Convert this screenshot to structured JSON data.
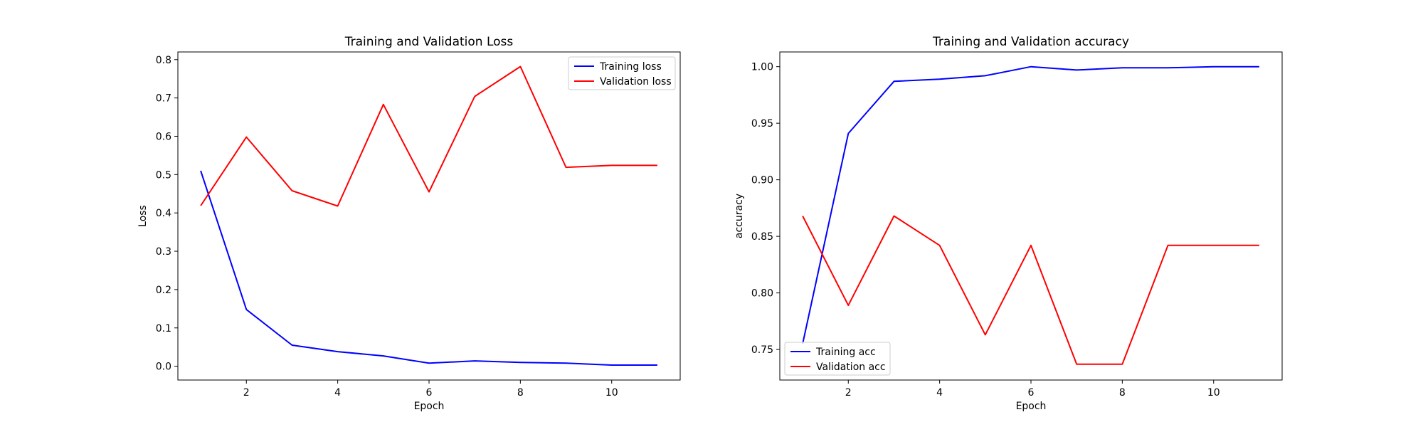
{
  "chart_data": [
    {
      "type": "line",
      "title": "Training and Validation Loss",
      "xlabel": "Epoch",
      "ylabel": "Loss",
      "xlim": [
        0.5,
        11.5
      ],
      "ylim": [
        -0.036,
        0.82
      ],
      "xticks": [
        2,
        4,
        6,
        8,
        10
      ],
      "yticks": [
        0.0,
        0.1,
        0.2,
        0.3,
        0.4,
        0.5,
        0.6,
        0.7,
        0.8
      ],
      "ytick_format": 1,
      "grid": false,
      "legend": "upper right",
      "x": [
        1,
        2,
        3,
        4,
        5,
        6,
        7,
        8,
        9,
        10,
        11
      ],
      "series": [
        {
          "name": "Training loss",
          "color": "#0000ff",
          "values": [
            0.51,
            0.148,
            0.055,
            0.038,
            0.027,
            0.008,
            0.014,
            0.01,
            0.008,
            0.003,
            0.003
          ]
        },
        {
          "name": "Validation loss",
          "color": "#ff0000",
          "values": [
            0.419,
            0.598,
            0.458,
            0.418,
            0.683,
            0.455,
            0.704,
            0.782,
            0.519,
            0.524,
            0.524
          ]
        }
      ]
    },
    {
      "type": "line",
      "title": "Training and Validation accuracy",
      "xlabel": "Epoch",
      "ylabel": "accuracy",
      "xlim": [
        0.5,
        11.5
      ],
      "ylim": [
        0.723,
        1.013
      ],
      "xticks": [
        2,
        4,
        6,
        8,
        10
      ],
      "yticks": [
        0.75,
        0.8,
        0.85,
        0.9,
        0.95,
        1.0
      ],
      "ytick_format": 2,
      "grid": false,
      "legend": "lower left",
      "x": [
        1,
        2,
        3,
        4,
        5,
        6,
        7,
        8,
        9,
        10,
        11
      ],
      "series": [
        {
          "name": "Training acc",
          "color": "#0000ff",
          "values": [
            0.755,
            0.941,
            0.987,
            0.989,
            0.992,
            1.0,
            0.997,
            0.999,
            0.999,
            1.0,
            1.0
          ]
        },
        {
          "name": "Validation acc",
          "color": "#ff0000",
          "values": [
            0.868,
            0.789,
            0.868,
            0.842,
            0.763,
            0.842,
            0.737,
            0.737,
            0.842,
            0.842,
            0.842
          ]
        }
      ]
    }
  ]
}
